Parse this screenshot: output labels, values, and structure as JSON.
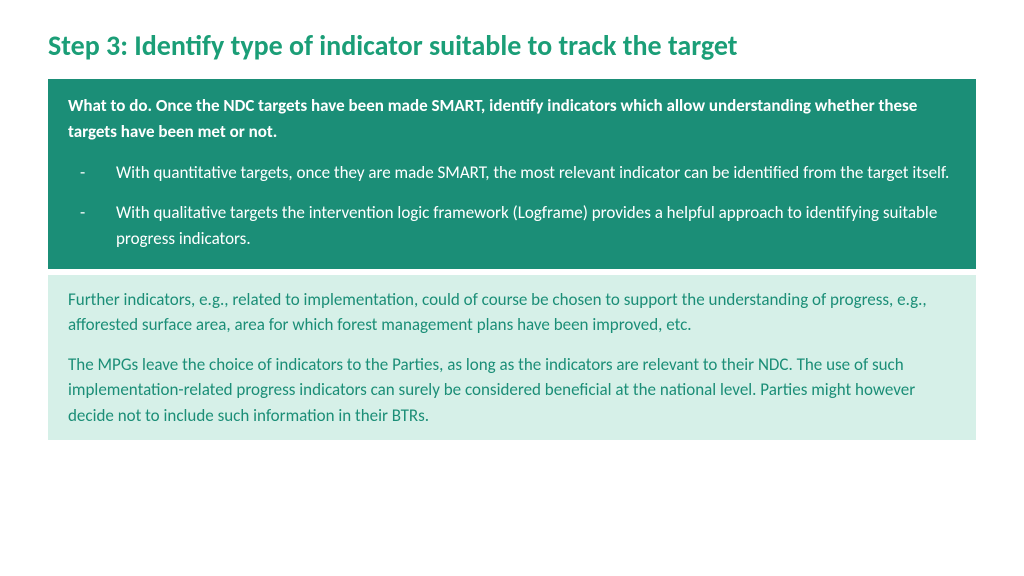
{
  "title": "Step 3: Identify type of indicator suitable to track the target",
  "dark_box": {
    "bg_color": "#1b8e77",
    "text_color": "#ffffff",
    "lead": "What to do. Once the NDC targets have been made SMART, identify indicators which allow understanding whether these targets have been met or not.",
    "bullets": [
      "With quantitative targets, once they are made SMART, the most relevant indicator can be identified from the target itself.",
      "With qualitative targets the intervention logic framework (Logframe) provides a helpful approach to identifying suitable progress indicators."
    ]
  },
  "light_box": {
    "bg_color": "#d6f0e8",
    "text_color": "#1b8e77",
    "paragraphs": [
      "Further indicators, e.g., related to implementation, could of course be chosen to support the understanding of progress, e.g., afforested surface area, area for which forest management plans have been improved, etc.",
      "The MPGs leave the choice of indicators to the Parties, as long as the indicators are relevant to their NDC. The use of such implementation-related progress indicators can surely be considered beneficial at the national level. Parties might however decide not to include such information in their BTRs."
    ]
  },
  "colors": {
    "title_color": "#1b9e77",
    "background": "#ffffff"
  },
  "typography": {
    "title_fontsize": 28,
    "title_weight": 700,
    "body_fontsize": 17,
    "lead_weight": 700,
    "body_weight": 400
  }
}
